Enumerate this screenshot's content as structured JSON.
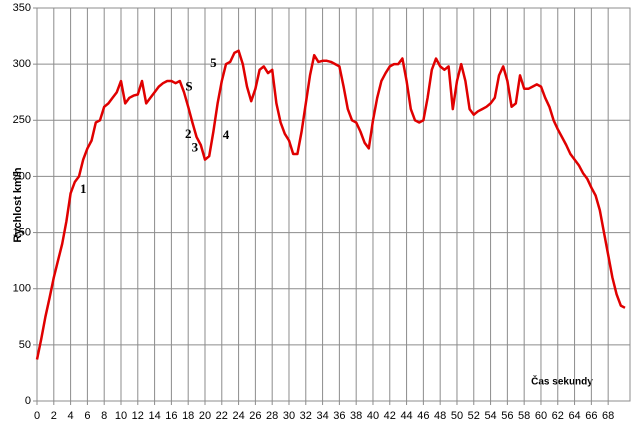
{
  "chart_data": {
    "type": "line",
    "y_label": "Rychlost km/h",
    "x_label": "Čas sekundy",
    "x": [
      0,
      0.5,
      1,
      1.5,
      2,
      2.5,
      3,
      3.5,
      4,
      4.5,
      5,
      5.5,
      6,
      6.5,
      7,
      7.5,
      8,
      8.5,
      9,
      9.5,
      10,
      10.5,
      11,
      11.5,
      12,
      12.5,
      13,
      13.5,
      14,
      14.5,
      15,
      15.5,
      16,
      16.5,
      17,
      17.5,
      18,
      18.5,
      19,
      19.5,
      20,
      20.5,
      21,
      21.5,
      22,
      22.5,
      23,
      23.5,
      24,
      24.5,
      25,
      25.5,
      26,
      26.5,
      27,
      27.5,
      28,
      28.5,
      29,
      29.5,
      30,
      30.5,
      31,
      31.5,
      32,
      32.5,
      33,
      33.5,
      34,
      34.5,
      35,
      35.5,
      36,
      36.5,
      37,
      37.5,
      38,
      38.5,
      39,
      39.5,
      40,
      40.5,
      41,
      41.5,
      42,
      42.5,
      43,
      43.5,
      44,
      44.5,
      45,
      45.5,
      46,
      46.5,
      47,
      47.5,
      48,
      48.5,
      49,
      49.5,
      50,
      50.5,
      51,
      51.5,
      52,
      52.5,
      53,
      53.5,
      54,
      54.5,
      55,
      55.5,
      56,
      56.5,
      57,
      57.5,
      58,
      58.5,
      59,
      59.5,
      60,
      60.5,
      61,
      61.5,
      62,
      62.5,
      63,
      63.5,
      64,
      64.5,
      65,
      65.5,
      66,
      66.5,
      67,
      67.5,
      68,
      68.5,
      69,
      69.5,
      70
    ],
    "series": [
      {
        "color": "#e00000",
        "values": [
          37,
          55,
          75,
          92,
          110,
          125,
          140,
          160,
          185,
          195,
          200,
          215,
          225,
          232,
          248,
          250,
          262,
          265,
          270,
          275,
          285,
          265,
          270,
          272,
          273,
          285,
          265,
          270,
          275,
          280,
          283,
          285,
          285,
          283,
          285,
          275,
          262,
          248,
          235,
          228,
          215,
          218,
          240,
          265,
          285,
          300,
          302,
          310,
          312,
          300,
          280,
          267,
          278,
          295,
          298,
          292,
          295,
          265,
          248,
          238,
          232,
          220,
          220,
          240,
          265,
          290,
          308,
          302,
          303,
          303,
          302,
          300,
          298,
          280,
          260,
          250,
          248,
          240,
          230,
          225,
          250,
          270,
          285,
          292,
          298,
          300,
          300,
          305,
          285,
          260,
          250,
          248,
          250,
          270,
          295,
          305,
          298,
          295,
          298,
          260,
          285,
          300,
          285,
          260,
          255,
          258,
          260,
          262,
          265,
          270,
          290,
          298,
          285,
          262,
          265,
          290,
          278,
          278,
          280,
          282,
          280,
          270,
          262,
          250,
          242,
          235,
          228,
          220,
          215,
          210,
          203,
          198,
          190,
          183,
          170,
          150,
          130,
          110,
          95,
          85,
          83
        ]
      }
    ],
    "annotations": [
      {
        "text": "1",
        "x": 5.5,
        "y": 188
      },
      {
        "text": "S",
        "x": 18.1,
        "y": 279
      },
      {
        "text": "2",
        "x": 18,
        "y": 237
      },
      {
        "text": "3",
        "x": 18.8,
        "y": 225
      },
      {
        "text": "4",
        "x": 22.5,
        "y": 236
      },
      {
        "text": "5",
        "x": 21,
        "y": 300
      }
    ],
    "xlim": [
      0,
      70.6
    ],
    "ylim": [
      0,
      350
    ],
    "xticks": [
      0,
      2,
      4,
      6,
      8,
      10,
      12,
      14,
      16,
      18,
      20,
      22,
      24,
      26,
      28,
      30,
      32,
      34,
      36,
      38,
      40,
      42,
      44,
      46,
      48,
      50,
      52,
      54,
      56,
      58,
      60,
      62,
      64,
      66,
      68
    ],
    "yticks": [
      0,
      50,
      100,
      150,
      200,
      250,
      300,
      350
    ],
    "grid": true
  }
}
